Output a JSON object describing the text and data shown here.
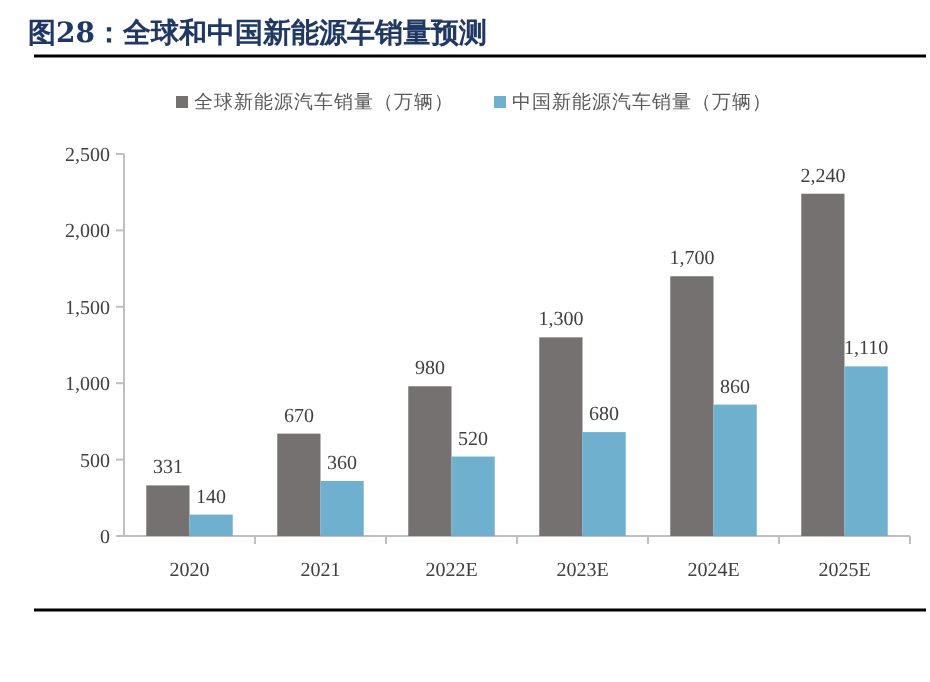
{
  "chart_data": {
    "type": "bar",
    "title": "图28：全球和中国新能源车销量预测",
    "categories": [
      "2020",
      "2021",
      "2022E",
      "2023E",
      "2024E",
      "2025E"
    ],
    "series": [
      {
        "name": "全球新能源汽车销量（万辆）",
        "color": "#767171",
        "values": [
          331,
          670,
          980,
          1300,
          1700,
          2240
        ],
        "value_labels": [
          "331",
          "670",
          "980",
          "1,300",
          "1,700",
          "2,240"
        ]
      },
      {
        "name": "中国新能源汽车销量（万辆）",
        "color": "#6fb0cf",
        "values": [
          140,
          360,
          520,
          680,
          860,
          1110
        ],
        "value_labels": [
          "140",
          "360",
          "520",
          "680",
          "860",
          "1,110"
        ]
      }
    ],
    "ylim": [
      0,
      2500
    ],
    "yticks": [
      0,
      {
        "value": 500,
        "label": "500"
      },
      {
        "value": 1000,
        "label": "1,000"
      },
      {
        "value": 1500,
        "label": "1,500"
      },
      {
        "value": 2000,
        "label": "2,000"
      },
      {
        "value": 2500,
        "label": "2,500"
      }
    ],
    "legend": "top",
    "grid": false
  }
}
